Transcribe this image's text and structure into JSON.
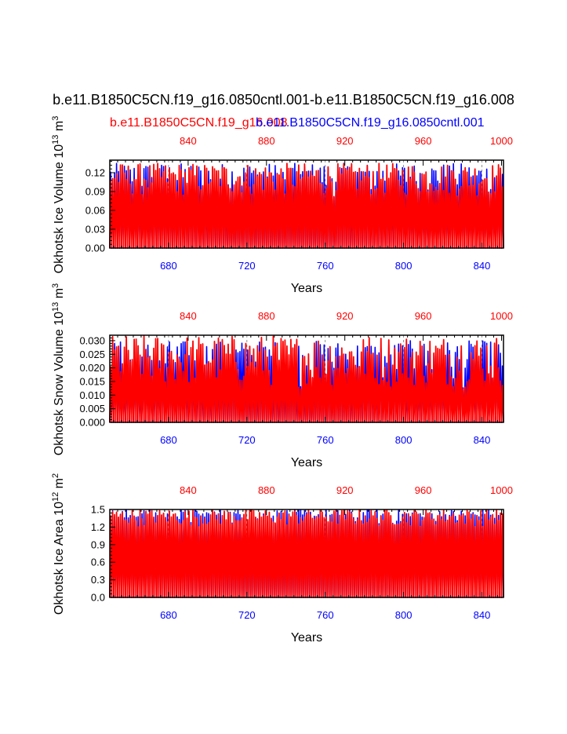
{
  "title": "b.e11.B1850C5CN.f19_g16.0850cntl.001-b.e11.B1850C5CN.f19_g16.008",
  "legend": {
    "red": "b.e11.B1850C5CN.f19_g16.008",
    "blue": "b.e11.B1850C5CN.f19_g16.0850cntl.001"
  },
  "colors": {
    "series_a": "#ff0000",
    "series_b": "#0000ff",
    "frame": "#000000"
  },
  "chart_data": [
    {
      "type": "line",
      "ylabel": "Okhotsk Ice Volume 10",
      "ylabel_exp": "13",
      "ylabel_unit": "m",
      "ylabel_unit_exp": "3",
      "xlabel": "Years",
      "ylim": [
        0,
        0.14
      ],
      "yticks": [
        "0.00",
        "0.03",
        "0.06",
        "0.09",
        "0.12"
      ],
      "yticks_values": [
        0,
        0.03,
        0.06,
        0.09,
        0.12
      ],
      "bottom_axis": {
        "range": [
          650,
          851
        ],
        "ticks": [
          "680",
          "720",
          "760",
          "800",
          "840"
        ]
      },
      "top_axis": {
        "range": [
          800,
          1001
        ],
        "ticks": [
          "840",
          "880",
          "920",
          "960",
          "1000"
        ]
      },
      "grid": "dashed vertical lines at bottom-axis ticks",
      "series": [
        {
          "name": "b.e11.B1850C5CN.f19_g16.0850cntl.001",
          "axis": "bottom",
          "years": [
            650,
            851
          ],
          "seasonal_max_range": [
            0.08,
            0.135
          ],
          "seasonal_min": 0.0
        },
        {
          "name": "b.e11.B1850C5CN.f19_g16.008",
          "axis": "top",
          "years": [
            800,
            1001
          ],
          "seasonal_max_range": [
            0.08,
            0.135
          ],
          "seasonal_min": 0.0
        }
      ]
    },
    {
      "type": "line",
      "ylabel": "Okhotsk Snow Volume 10",
      "ylabel_exp": "13",
      "ylabel_unit": "m",
      "ylabel_unit_exp": "3",
      "xlabel": "Years",
      "ylim": [
        0,
        0.032
      ],
      "yticks": [
        "0.000",
        "0.005",
        "0.010",
        "0.015",
        "0.020",
        "0.025",
        "0.030"
      ],
      "yticks_values": [
        0,
        0.005,
        0.01,
        0.015,
        0.02,
        0.025,
        0.03
      ],
      "bottom_axis": {
        "range": [
          650,
          851
        ],
        "ticks": [
          "680",
          "720",
          "760",
          "800",
          "840"
        ]
      },
      "top_axis": {
        "range": [
          800,
          1001
        ],
        "ticks": [
          "840",
          "880",
          "920",
          "960",
          "1000"
        ]
      },
      "grid": "dashed vertical lines at bottom-axis ticks",
      "series": [
        {
          "name": "b.e11.B1850C5CN.f19_g16.0850cntl.001",
          "axis": "bottom",
          "years": [
            650,
            851
          ],
          "seasonal_max_range": [
            0.012,
            0.03
          ],
          "seasonal_min": 0.0
        },
        {
          "name": "b.e11.B1850C5CN.f19_g16.008",
          "axis": "top",
          "years": [
            800,
            1001
          ],
          "seasonal_max_range": [
            0.012,
            0.032
          ],
          "seasonal_min": 0.0
        }
      ]
    },
    {
      "type": "line",
      "ylabel": "Okhotsk Ice Area 10",
      "ylabel_exp": "12",
      "ylabel_unit": "m",
      "ylabel_unit_exp": "2",
      "xlabel": "Years",
      "ylim": [
        0,
        1.5
      ],
      "yticks": [
        "0.0",
        "0.3",
        "0.6",
        "0.9",
        "1.2",
        "1.5"
      ],
      "yticks_values": [
        0,
        0.3,
        0.6,
        0.9,
        1.2,
        1.5
      ],
      "bottom_axis": {
        "range": [
          650,
          851
        ],
        "ticks": [
          "680",
          "720",
          "760",
          "800",
          "840"
        ]
      },
      "top_axis": {
        "range": [
          800,
          1001
        ],
        "ticks": [
          "840",
          "880",
          "920",
          "960",
          "1000"
        ]
      },
      "grid": "dashed vertical lines at bottom-axis ticks",
      "series": [
        {
          "name": "b.e11.B1850C5CN.f19_g16.0850cntl.001",
          "axis": "bottom",
          "years": [
            650,
            851
          ],
          "seasonal_max_range": [
            1.2,
            1.5
          ],
          "seasonal_min": 0.0
        },
        {
          "name": "b.e11.B1850C5CN.f19_g16.008",
          "axis": "top",
          "years": [
            800,
            1001
          ],
          "seasonal_max_range": [
            1.2,
            1.5
          ],
          "seasonal_min": 0.0
        }
      ]
    }
  ]
}
